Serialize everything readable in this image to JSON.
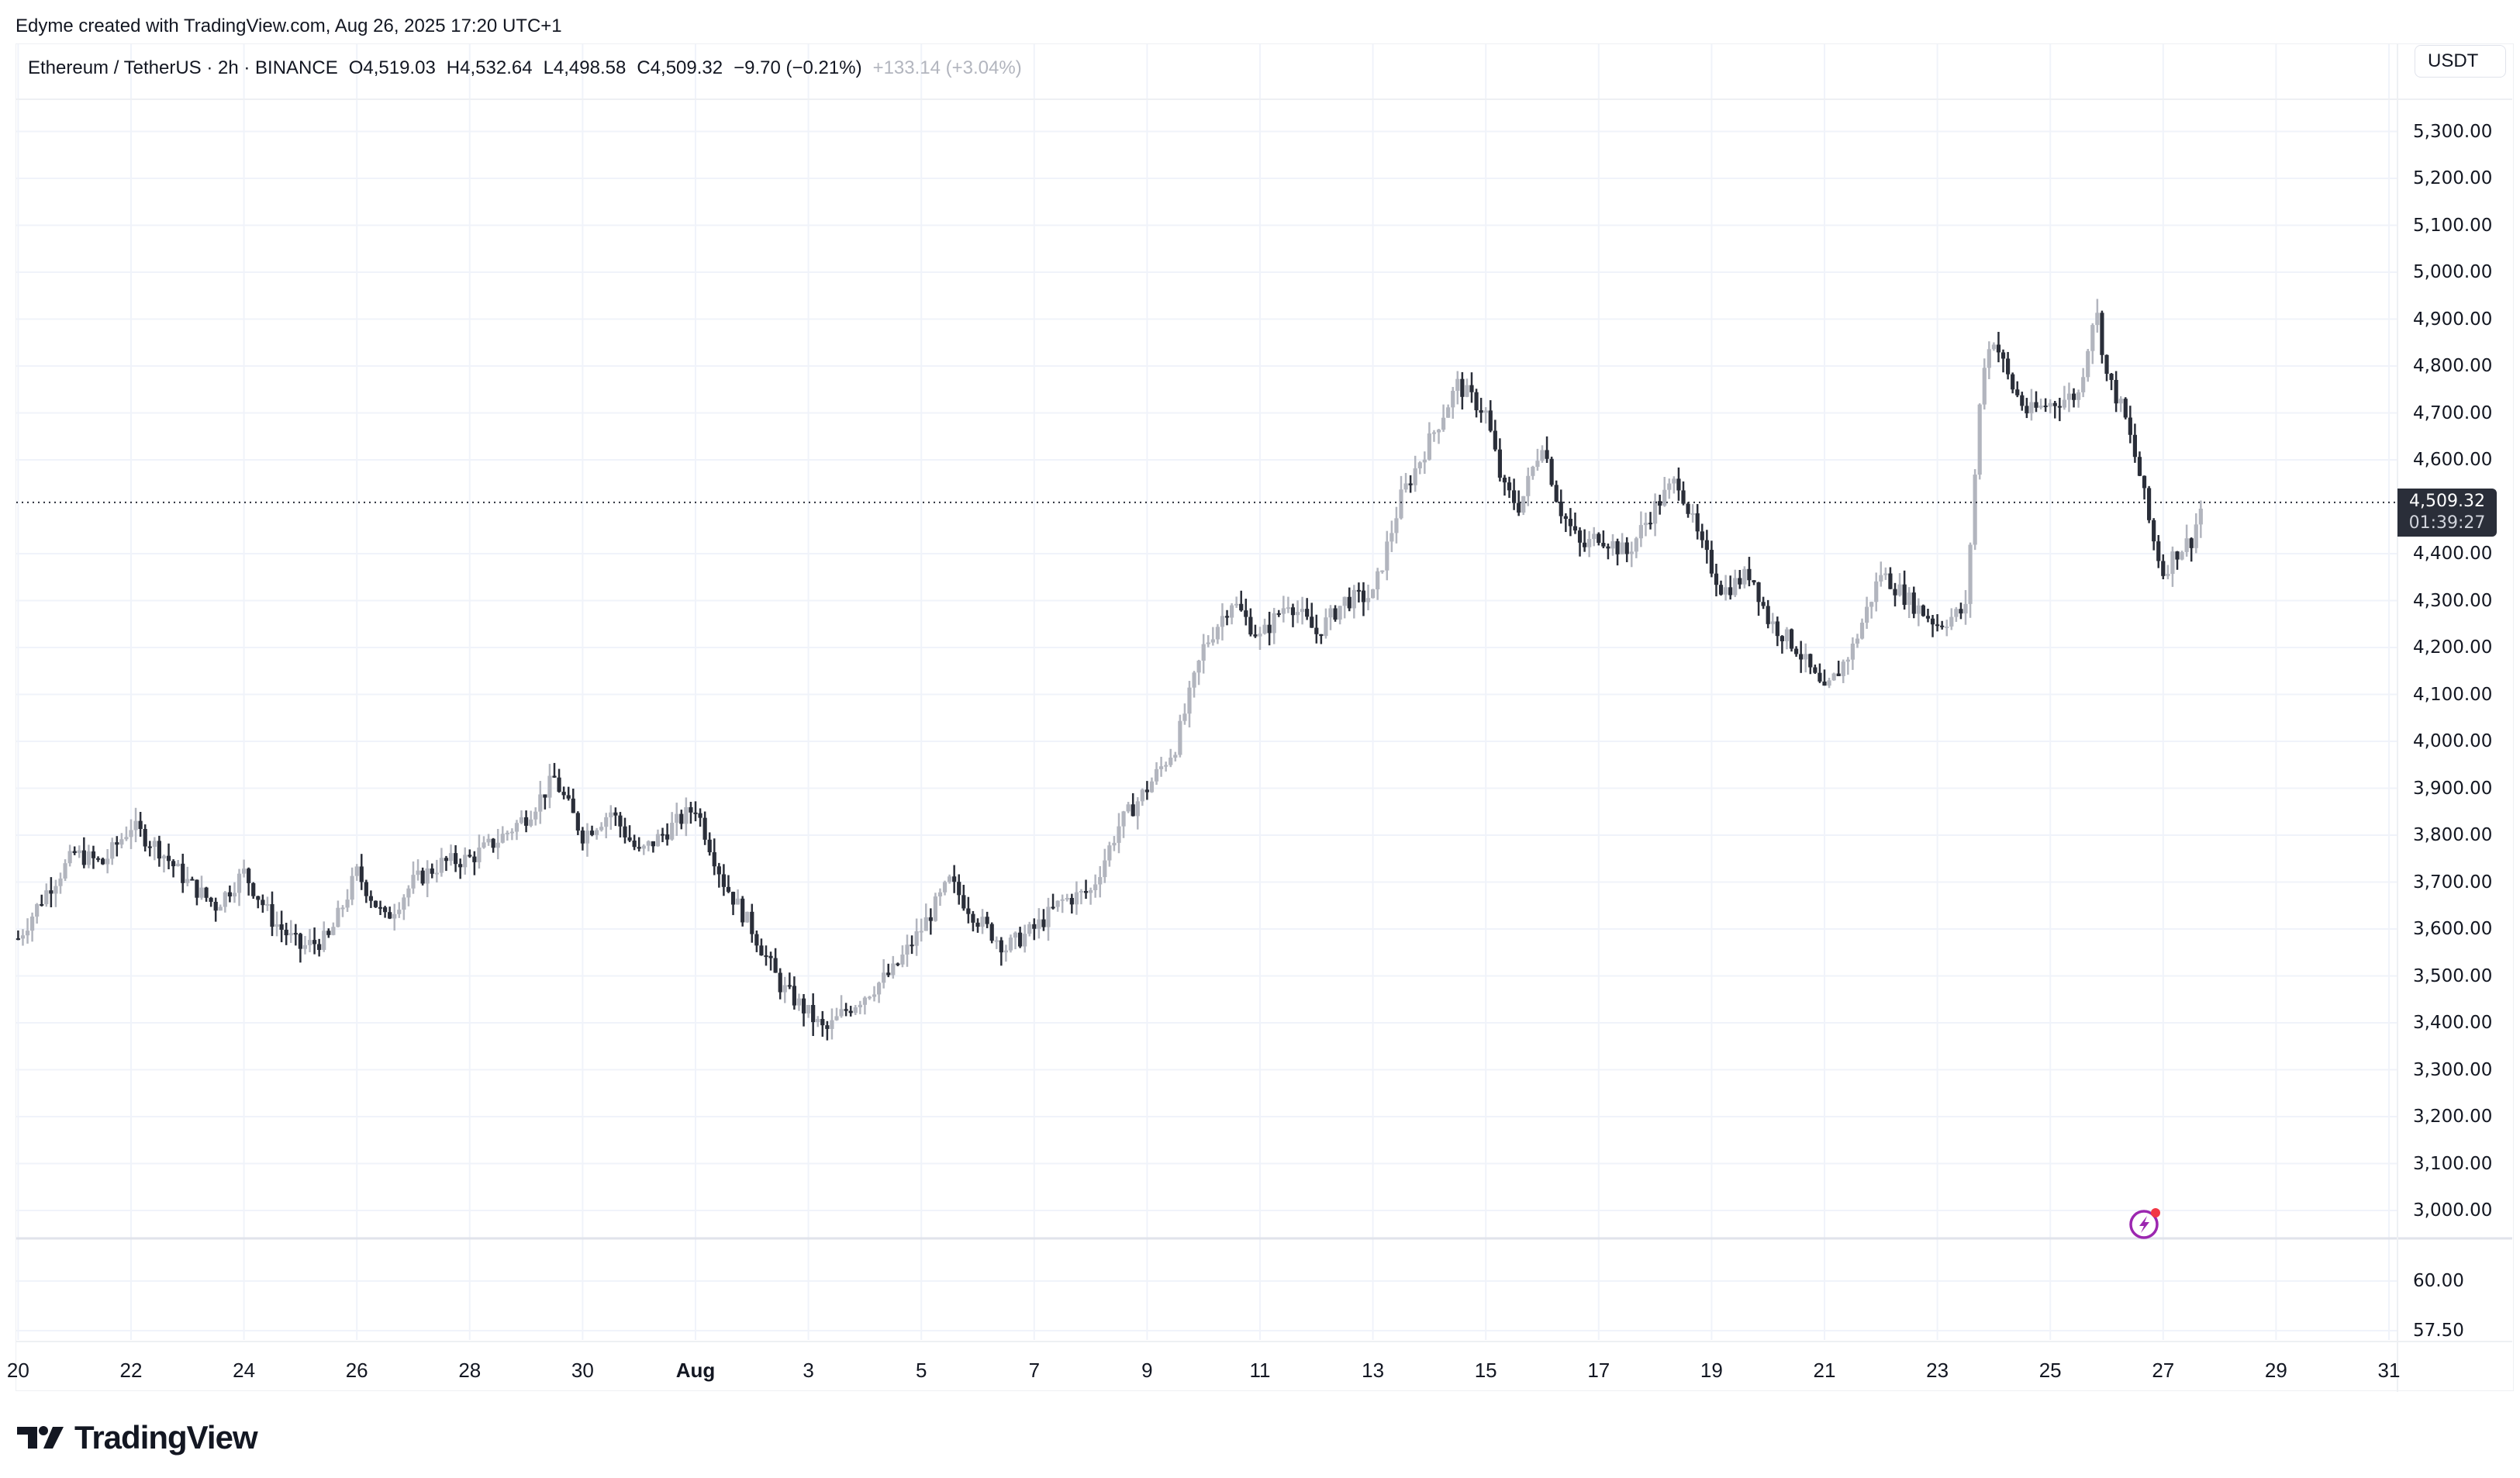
{
  "credit": "Edyme created with TradingView.com, Aug 26, 2025 17:20 UTC+1",
  "legend": {
    "symbol": "Ethereum / TetherUS · 2h · BINANCE",
    "open": "O4,519.03",
    "high": "H4,532.64",
    "low": "L4,498.58",
    "close": "C4,509.32",
    "change": "−9.70 (−0.21%)",
    "range_change": "+133.14 (+3.04%)"
  },
  "currency_button": "USDT",
  "price_tag": {
    "price": "4,509.32",
    "countdown": "01:39:27"
  },
  "y_axis_labels": [
    "5,300.00",
    "5,200.00",
    "5,100.00",
    "5,000.00",
    "4,900.00",
    "4,800.00",
    "4,700.00",
    "4,600.00",
    "4,400.00",
    "4,300.00",
    "4,200.00",
    "4,100.00",
    "4,000.00",
    "3,900.00",
    "3,800.00",
    "3,700.00",
    "3,600.00",
    "3,500.00",
    "3,400.00",
    "3,300.00",
    "3,200.00",
    "3,100.00",
    "3,000.00"
  ],
  "lower_pane_labels": [
    "60.00",
    "57.50"
  ],
  "x_axis_labels": [
    "20",
    "22",
    "24",
    "26",
    "28",
    "30",
    "Aug",
    "3",
    "5",
    "7",
    "9",
    "11",
    "13",
    "15",
    "17",
    "19",
    "21",
    "23",
    "25",
    "27",
    "29",
    "31"
  ],
  "logo_text": "TradingView",
  "colors": {
    "up": "#b2b5be",
    "down": "#2a2e39",
    "grid": "#f0f3fa",
    "price_line": "#2a2e39",
    "alert_icon": "#9c27b0",
    "alert_dot": "#f23645"
  },
  "chart_data": {
    "type": "candlestick",
    "title": "Ethereum / TetherUS · 2h · BINANCE",
    "xlabel": "",
    "ylabel": "USDT",
    "ylim": [
      2980,
      5340
    ],
    "x_ticks": [
      "Jul 20",
      "Jul 22",
      "Jul 24",
      "Jul 26",
      "Jul 28",
      "Jul 30",
      "Aug 1",
      "Aug 3",
      "Aug 5",
      "Aug 7",
      "Aug 9",
      "Aug 11",
      "Aug 13",
      "Aug 15",
      "Aug 17",
      "Aug 19",
      "Aug 21",
      "Aug 23",
      "Aug 25",
      "Aug 27",
      "Aug 29",
      "Aug 31"
    ],
    "last_price": 4509.32,
    "ohlc_last": {
      "open": 4519.03,
      "high": 4532.64,
      "low": 4498.58,
      "close": 4509.32
    },
    "path_note": "approximate close path, day offset from Aug 1",
    "path": [
      [
        -12,
        3580
      ],
      [
        -11.5,
        3680
      ],
      [
        -11,
        3760
      ],
      [
        -10.5,
        3740
      ],
      [
        -10,
        3820
      ],
      [
        -9.5,
        3770
      ],
      [
        -9,
        3700
      ],
      [
        -8.5,
        3650
      ],
      [
        -8,
        3720
      ],
      [
        -7.5,
        3620
      ],
      [
        -7,
        3560
      ],
      [
        -6.5,
        3580
      ],
      [
        -6,
        3720
      ],
      [
        -5.5,
        3620
      ],
      [
        -5,
        3700
      ],
      [
        -4.5,
        3740
      ],
      [
        -4,
        3750
      ],
      [
        -3.5,
        3790
      ],
      [
        -3,
        3840
      ],
      [
        -2.5,
        3920
      ],
      [
        -2,
        3800
      ],
      [
        -1.5,
        3850
      ],
      [
        -1,
        3760
      ],
      [
        -0.5,
        3810
      ],
      [
        0,
        3860
      ],
      [
        0.5,
        3700
      ],
      [
        1,
        3600
      ],
      [
        1.5,
        3480
      ],
      [
        2,
        3420
      ],
      [
        2.3,
        3380
      ],
      [
        2.6,
        3420
      ],
      [
        3,
        3460
      ],
      [
        3.5,
        3510
      ],
      [
        4,
        3600
      ],
      [
        4.5,
        3700
      ],
      [
        5,
        3620
      ],
      [
        5.5,
        3560
      ],
      [
        6,
        3600
      ],
      [
        6.5,
        3660
      ],
      [
        7,
        3680
      ],
      [
        7.5,
        3820
      ],
      [
        8,
        3900
      ],
      [
        8.5,
        3990
      ],
      [
        9,
        4200
      ],
      [
        9.5,
        4300
      ],
      [
        10,
        4220
      ],
      [
        10.5,
        4300
      ],
      [
        11,
        4230
      ],
      [
        11.5,
        4300
      ],
      [
        12,
        4310
      ],
      [
        12.5,
        4520
      ],
      [
        13,
        4640
      ],
      [
        13.5,
        4760
      ],
      [
        14,
        4700
      ],
      [
        14.3,
        4540
      ],
      [
        14.6,
        4500
      ],
      [
        15,
        4640
      ],
      [
        15.3,
        4500
      ],
      [
        15.7,
        4410
      ],
      [
        16,
        4440
      ],
      [
        16.5,
        4400
      ],
      [
        17,
        4500
      ],
      [
        17.4,
        4560
      ],
      [
        17.8,
        4420
      ],
      [
        18.2,
        4320
      ],
      [
        18.7,
        4360
      ],
      [
        19,
        4260
      ],
      [
        19.5,
        4200
      ],
      [
        20,
        4100
      ],
      [
        20.5,
        4200
      ],
      [
        21,
        4360
      ],
      [
        21.5,
        4300
      ],
      [
        22,
        4250
      ],
      [
        22.5,
        4280
      ],
      [
        22.8,
        4800
      ],
      [
        23,
        4860
      ],
      [
        23.3,
        4760
      ],
      [
        23.6,
        4700
      ],
      [
        24,
        4720
      ],
      [
        24.5,
        4740
      ],
      [
        24.8,
        4930
      ],
      [
        25,
        4780
      ],
      [
        25.3,
        4700
      ],
      [
        25.6,
        4560
      ],
      [
        25.8,
        4440
      ],
      [
        26,
        4360
      ],
      [
        26.2,
        4400
      ],
      [
        26.5,
        4430
      ],
      [
        26.7,
        4509.32
      ]
    ]
  }
}
